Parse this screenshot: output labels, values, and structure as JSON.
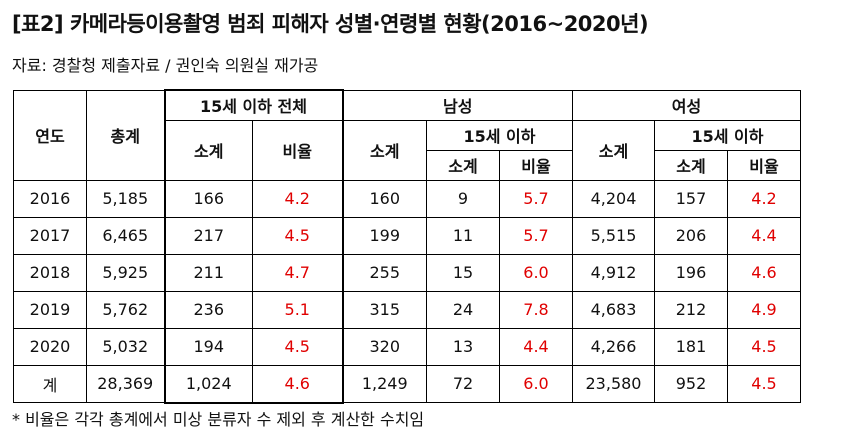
{
  "title": "[표2] 카메라등이용촬영 범죄 피해자 성별·연령별 현황(2016~2020년)",
  "source": "자료: 경찰청 제출자료 / 권인숙 의원실 재가공",
  "note": "* 비율은 각각 총계에서 미상 분류자 수 제외 후 계산한 수치임",
  "headers": {
    "year": "연도",
    "total": "총계",
    "under15_all": "15세 이하 전체",
    "male": "남성",
    "female": "여성",
    "subtotal": "소계",
    "ratio": "비율",
    "under15": "15세 이하"
  },
  "rows": [
    {
      "year": "2016",
      "total": "5,185",
      "u15_sub": "166",
      "u15_ratio": "4.2",
      "m_sub": "160",
      "m_u15_sub": "9",
      "m_u15_ratio": "5.7",
      "f_sub": "4,204",
      "f_u15_sub": "157",
      "f_u15_ratio": "4.2"
    },
    {
      "year": "2017",
      "total": "6,465",
      "u15_sub": "217",
      "u15_ratio": "4.5",
      "m_sub": "199",
      "m_u15_sub": "11",
      "m_u15_ratio": "5.7",
      "f_sub": "5,515",
      "f_u15_sub": "206",
      "f_u15_ratio": "4.4"
    },
    {
      "year": "2018",
      "total": "5,925",
      "u15_sub": "211",
      "u15_ratio": "4.7",
      "m_sub": "255",
      "m_u15_sub": "15",
      "m_u15_ratio": "6.0",
      "f_sub": "4,912",
      "f_u15_sub": "196",
      "f_u15_ratio": "4.6"
    },
    {
      "year": "2019",
      "total": "5,762",
      "u15_sub": "236",
      "u15_ratio": "5.1",
      "m_sub": "315",
      "m_u15_sub": "24",
      "m_u15_ratio": "7.8",
      "f_sub": "4,683",
      "f_u15_sub": "212",
      "f_u15_ratio": "4.9"
    },
    {
      "year": "2020",
      "total": "5,032",
      "u15_sub": "194",
      "u15_ratio": "4.5",
      "m_sub": "320",
      "m_u15_sub": "13",
      "m_u15_ratio": "4.4",
      "f_sub": "4,266",
      "f_u15_sub": "181",
      "f_u15_ratio": "4.5"
    },
    {
      "year": "계",
      "total": "28,369",
      "u15_sub": "1,024",
      "u15_ratio": "4.6",
      "m_sub": "1,249",
      "m_u15_sub": "72",
      "m_u15_ratio": "6.0",
      "f_sub": "23,580",
      "f_u15_sub": "952",
      "f_u15_ratio": "4.5"
    }
  ],
  "colors": {
    "ratio_highlight": "#e00000"
  }
}
